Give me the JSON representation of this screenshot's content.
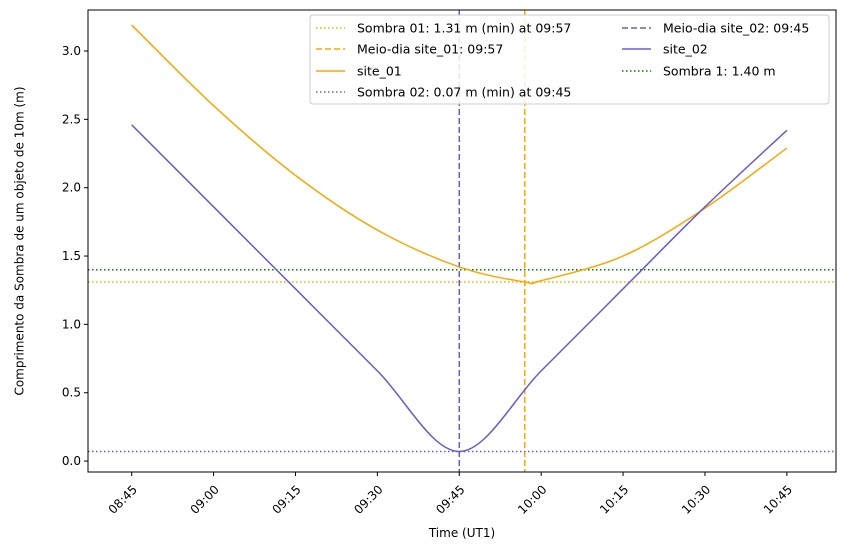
{
  "chart_data": {
    "type": "line",
    "title": "",
    "xlabel": "Time (UT1)",
    "ylabel": "Comprimento da Sombra de um objeto de 10m (m)",
    "xlim_minutes": [
      517,
      654
    ],
    "ylim": [
      -0.08,
      3.3
    ],
    "x_ticks": [
      "08:45",
      "09:00",
      "09:15",
      "09:30",
      "09:45",
      "10:00",
      "10:15",
      "10:30",
      "10:45"
    ],
    "x_tick_minutes": [
      525,
      540,
      555,
      570,
      585,
      600,
      615,
      630,
      645
    ],
    "y_ticks": [
      "0.0",
      "0.5",
      "1.0",
      "1.5",
      "2.0",
      "2.5",
      "3.0"
    ],
    "y_tick_values": [
      0,
      0.5,
      1.0,
      1.5,
      2.0,
      2.5,
      3.0
    ],
    "legend_position": "top-right",
    "series": [
      {
        "name": "site_01",
        "color": "#ffa500",
        "style": "solid",
        "x": [
          "08:45",
          "09:00",
          "09:15",
          "09:30",
          "09:45",
          "09:57",
          "10:00",
          "10:15",
          "10:30",
          "10:45"
        ],
        "x_minutes": [
          525,
          540,
          555,
          570,
          585,
          597,
          600,
          615,
          630,
          645
        ],
        "values": [
          3.19,
          2.6,
          2.09,
          1.69,
          1.42,
          1.31,
          1.32,
          1.5,
          1.85,
          2.29
        ]
      },
      {
        "name": "site_02",
        "color": "#6a5acd",
        "style": "solid",
        "x": [
          "08:45",
          "09:00",
          "09:15",
          "09:30",
          "09:45",
          "10:00",
          "10:15",
          "10:30",
          "10:45"
        ],
        "x_minutes": [
          525,
          540,
          555,
          570,
          585,
          600,
          615,
          630,
          645
        ],
        "values": [
          2.46,
          1.86,
          1.26,
          0.66,
          0.07,
          0.66,
          1.26,
          1.86,
          2.42
        ]
      }
    ],
    "reference_lines": [
      {
        "key": "sombra01",
        "orientation": "horizontal",
        "value": 1.31,
        "color": "#ffa500",
        "style": "dotted"
      },
      {
        "key": "meiodia01",
        "orientation": "vertical",
        "value_minutes": 597,
        "color": "#ffa500",
        "style": "dashed"
      },
      {
        "key": "sombra02",
        "orientation": "horizontal",
        "value": 0.07,
        "color": "#6a5acd",
        "style": "dotted"
      },
      {
        "key": "meiodia02",
        "orientation": "vertical",
        "value_minutes": 585,
        "color": "#6a5acd",
        "style": "dashed"
      },
      {
        "key": "sombra1",
        "orientation": "horizontal",
        "value": 1.4,
        "color": "#008000",
        "style": "dotted"
      }
    ],
    "legend": [
      {
        "label": "Sombra 01: 1.31 m (min) at 09:57",
        "color": "#ffa500",
        "style": "dotted"
      },
      {
        "label": "Meio-dia site_01: 09:57",
        "color": "#ffa500",
        "style": "dashed"
      },
      {
        "label": "site_01",
        "color": "#ffa500",
        "style": "solid"
      },
      {
        "label": "Sombra 02: 0.07 m (min) at 09:45",
        "color": "#6a5acd",
        "style": "dotted"
      },
      {
        "label": "Meio-dia site_02: 09:45",
        "color": "#6a5acd",
        "style": "dashed"
      },
      {
        "label": "site_02",
        "color": "#6a5acd",
        "style": "solid"
      },
      {
        "label": "Sombra 1: 1.40 m",
        "color": "#008000",
        "style": "dotted"
      }
    ]
  }
}
